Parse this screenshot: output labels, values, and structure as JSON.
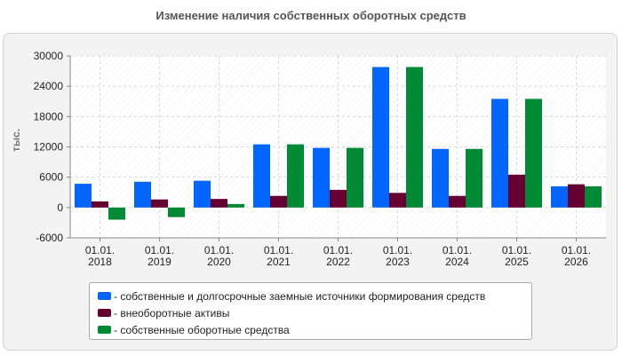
{
  "chart_data": {
    "type": "bar",
    "title": "Изменение наличия собственных оборотных средств",
    "ylabel": "тыс.",
    "xlabel": "",
    "ylim": [
      -6000,
      30000
    ],
    "yticks": [
      "30000",
      "24000",
      "18000",
      "12000",
      "6000",
      "0",
      "-6000"
    ],
    "ytick_values": [
      30000,
      24000,
      18000,
      12000,
      6000,
      0,
      -6000
    ],
    "categories": [
      [
        "01.01.",
        "2018"
      ],
      [
        "01.01.",
        "2019"
      ],
      [
        "01.01.",
        "2020"
      ],
      [
        "01.01.",
        "2021"
      ],
      [
        "01.01.",
        "2022"
      ],
      [
        "01.01.",
        "2023"
      ],
      [
        "01.01.",
        "2024"
      ],
      [
        "01.01.",
        "2025"
      ],
      [
        "01.01.",
        "2026"
      ]
    ],
    "grid": true,
    "legend_position": "bottom",
    "series": [
      {
        "name": "- собственные и долгосрочные заемные источники формирования средств",
        "color": "#0066ff",
        "values": [
          4700,
          5100,
          5300,
          12500,
          11800,
          27800,
          11600,
          21500,
          4200
        ]
      },
      {
        "name": "- внеоборотные активы",
        "color": "#660033",
        "values": [
          1200,
          1600,
          1700,
          2300,
          3500,
          2900,
          2300,
          6500,
          4600
        ]
      },
      {
        "name": "- собственные оборотные средства",
        "color": "#008a33",
        "values": [
          -2400,
          -1900,
          700,
          12500,
          11800,
          27800,
          11600,
          21500,
          4200
        ]
      }
    ]
  }
}
